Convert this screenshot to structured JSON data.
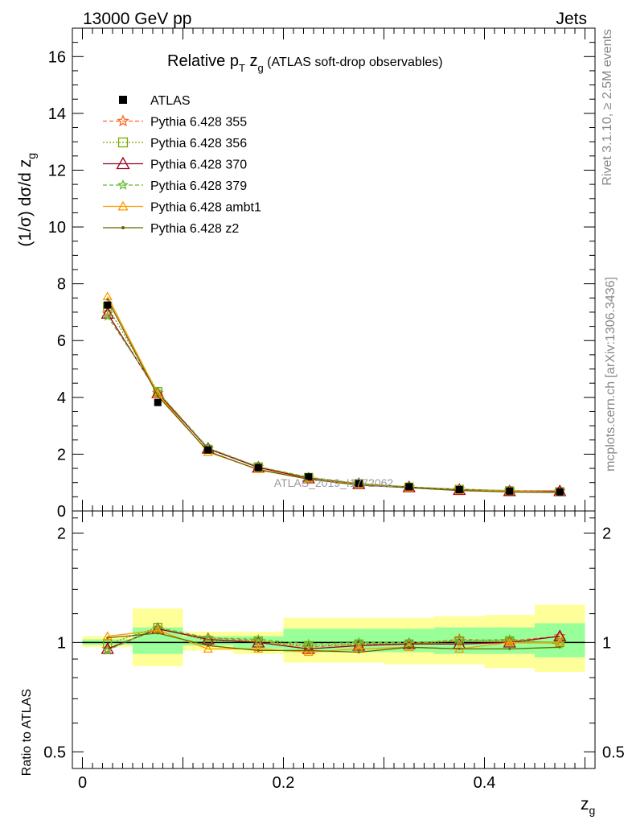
{
  "header": {
    "left": "13000 GeV pp",
    "right": "Jets"
  },
  "side_text": {
    "rivet": "Rivet 3.1.10, ≥ 2.5M events",
    "mcplots": "mcplots.cern.ch [arXiv:1306.3436]"
  },
  "watermark": "ATLAS_2019_I1772062",
  "colors": {
    "atlas": "#000000",
    "p355": "#ff6622",
    "p356": "#77aa00",
    "p370": "#990022",
    "p379": "#66bb33",
    "ambt1": "#ff9900",
    "z2": "#666600",
    "band_yellow": "#ffff99",
    "band_green": "#99ff99"
  },
  "chart_data": [
    {
      "type": "line",
      "title_main": "Relative p",
      "title_sub1": "T",
      "title_mid": " z",
      "title_sub2": "g",
      "title_paren": " (ATLAS soft-drop observables)",
      "ylabel_main": "(1/σ) dσ/d z",
      "ylabel_sub": "g",
      "xlim": [
        -0.01,
        0.51
      ],
      "ylim": [
        0,
        17
      ],
      "y_ticks": [
        "0",
        "2",
        "4",
        "6",
        "8",
        "10",
        "12",
        "14",
        "16"
      ],
      "x": [
        0.025,
        0.075,
        0.125,
        0.175,
        0.225,
        0.275,
        0.325,
        0.375,
        0.425,
        0.475
      ],
      "x_edges": [
        0.0,
        0.05,
        0.1,
        0.15,
        0.2,
        0.25,
        0.3,
        0.35,
        0.4,
        0.45,
        0.5
      ],
      "atlas": {
        "name": "ATLAS",
        "values": [
          7.25,
          3.82,
          2.15,
          1.53,
          1.2,
          0.97,
          0.85,
          0.75,
          0.7,
          0.67
        ]
      },
      "series": [
        {
          "name": "Pythia 6.428 355",
          "values": [
            6.95,
            4.15,
            2.2,
            1.55,
            1.16,
            0.96,
            0.84,
            0.77,
            0.71,
            0.7
          ]
        },
        {
          "name": "Pythia 6.428 356",
          "values": [
            7.2,
            4.2,
            2.17,
            1.55,
            1.18,
            0.96,
            0.84,
            0.76,
            0.71,
            0.68
          ]
        },
        {
          "name": "Pythia 6.428 370",
          "values": [
            6.95,
            4.15,
            2.2,
            1.53,
            1.15,
            0.95,
            0.84,
            0.74,
            0.7,
            0.7
          ]
        },
        {
          "name": "Pythia 6.428 379",
          "values": [
            6.85,
            4.2,
            2.22,
            1.56,
            1.19,
            0.97,
            0.85,
            0.76,
            0.72,
            0.66
          ]
        },
        {
          "name": "Pythia 6.428 ambt1",
          "values": [
            7.55,
            4.12,
            2.07,
            1.47,
            1.13,
            0.93,
            0.82,
            0.72,
            0.7,
            0.67
          ]
        },
        {
          "name": "Pythia 6.428 z2",
          "values": [
            7.45,
            4.05,
            2.1,
            1.45,
            1.12,
            0.91,
            0.82,
            0.72,
            0.67,
            0.65
          ]
        }
      ]
    },
    {
      "type": "line",
      "ylabel": "Ratio to ATLAS",
      "xlabel_main": "z",
      "xlabel_sub": "g",
      "xlim": [
        -0.01,
        0.51
      ],
      "ylim": [
        0.45,
        2.3
      ],
      "y_scale": "log",
      "y_ticks": [
        "0.5",
        "1",
        "2"
      ],
      "x_ticks": [
        "0",
        "0.2",
        "0.4"
      ],
      "band_yellow": [
        [
          0.97,
          1.04
        ],
        [
          0.86,
          1.24
        ],
        [
          0.95,
          1.07
        ],
        [
          0.93,
          1.07
        ],
        [
          0.88,
          1.17
        ],
        [
          0.88,
          1.17
        ],
        [
          0.87,
          1.17
        ],
        [
          0.87,
          1.18
        ],
        [
          0.85,
          1.19
        ],
        [
          0.83,
          1.27
        ]
      ],
      "band_green": [
        [
          0.985,
          1.02
        ],
        [
          0.93,
          1.1
        ],
        [
          0.98,
          1.04
        ],
        [
          0.96,
          1.04
        ],
        [
          0.94,
          1.09
        ],
        [
          0.94,
          1.09
        ],
        [
          0.94,
          1.09
        ],
        [
          0.93,
          1.1
        ],
        [
          0.93,
          1.1
        ],
        [
          0.91,
          1.13
        ]
      ],
      "ratios": [
        {
          "name": "Pythia 6.428 355",
          "values": [
            0.96,
            1.09,
            1.03,
            1.01,
            0.97,
            0.99,
            0.99,
            1.02,
            1.01,
            1.04
          ]
        },
        {
          "name": "Pythia 6.428 356",
          "values": [
            0.99,
            1.1,
            1.01,
            1.01,
            0.98,
            0.99,
            0.99,
            1.01,
            1.01,
            1.0
          ]
        },
        {
          "name": "Pythia 6.428 370",
          "values": [
            0.96,
            1.09,
            1.02,
            1.0,
            0.96,
            0.98,
            0.99,
            0.99,
            1.0,
            1.04
          ]
        },
        {
          "name": "Pythia 6.428 379",
          "values": [
            0.95,
            1.1,
            1.03,
            1.02,
            0.99,
            1.0,
            1.0,
            1.01,
            1.02,
            0.99
          ]
        },
        {
          "name": "Pythia 6.428 ambt1",
          "values": [
            1.04,
            1.08,
            0.96,
            0.96,
            0.94,
            0.96,
            0.97,
            0.96,
            1.0,
            1.0
          ]
        },
        {
          "name": "Pythia 6.428 z2",
          "values": [
            1.03,
            1.06,
            0.98,
            0.95,
            0.95,
            0.94,
            0.97,
            0.96,
            0.96,
            0.97
          ]
        }
      ]
    }
  ]
}
